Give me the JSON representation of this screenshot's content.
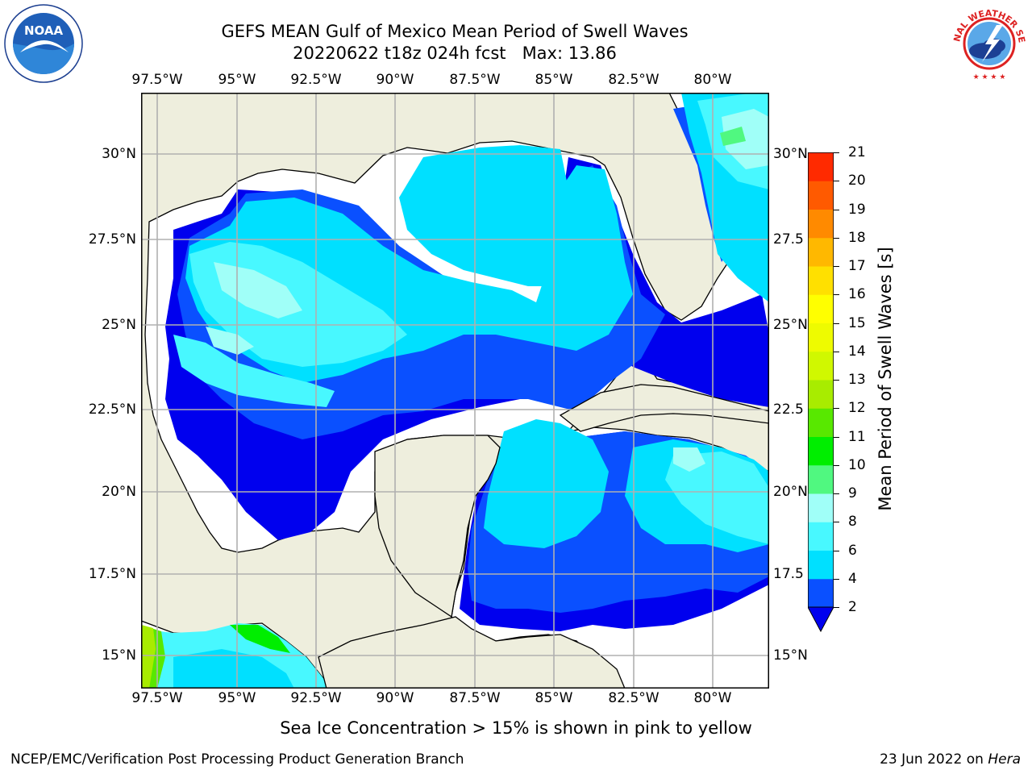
{
  "title": {
    "line1": "GEFS MEAN Gulf of Mexico Mean Period of Swell Waves",
    "line2": "20220622 t18z 024h fcst   Max: 13.86"
  },
  "map": {
    "lon_labels": [
      "97.5°W",
      "95°W",
      "92.5°W",
      "90°W",
      "87.5°W",
      "85°W",
      "82.5°W",
      "80°W"
    ],
    "lat_labels_left": [
      "30°N",
      "27.5°N",
      "25°N",
      "22.5°N",
      "20°N",
      "17.5°N",
      "15°N"
    ],
    "lat_labels_right": [
      "30°N",
      "27.5",
      "25°N",
      "22.5",
      "20°N",
      "17.5",
      "15°N"
    ],
    "land_color": "#eeeedd",
    "grid_color": "#b0b0b0"
  },
  "colorbar": {
    "title": "Mean Period of Swell Waves [s]",
    "ticks": [
      "2",
      "4",
      "6",
      "8",
      "9",
      "10",
      "11",
      "12",
      "13",
      "14",
      "15",
      "16",
      "17",
      "18",
      "19",
      "20",
      "21"
    ],
    "extend": "min",
    "colors": [
      "#0a50ff",
      "#00e0ff",
      "#48f8ff",
      "#a0fff8",
      "#50f880",
      "#00ee00",
      "#58e800",
      "#a8ec00",
      "#d0f800",
      "#eefb00",
      "#ffff00",
      "#ffe000",
      "#ffb800",
      "#ff8a00",
      "#ff5a00",
      "#ff2a00"
    ],
    "under_color": "#0000ee"
  },
  "note": "Sea Ice Concentration > 15% is shown in pink to yellow",
  "footer": {
    "left": "NCEP/EMC/Verification Post Processing Product Generation Branch",
    "date": "23 Jun 2022 on",
    "host": "Hera"
  },
  "logos": {
    "noaa_text": "NOAA",
    "nws_text": "NATIONAL WEATHER SERVICE"
  }
}
